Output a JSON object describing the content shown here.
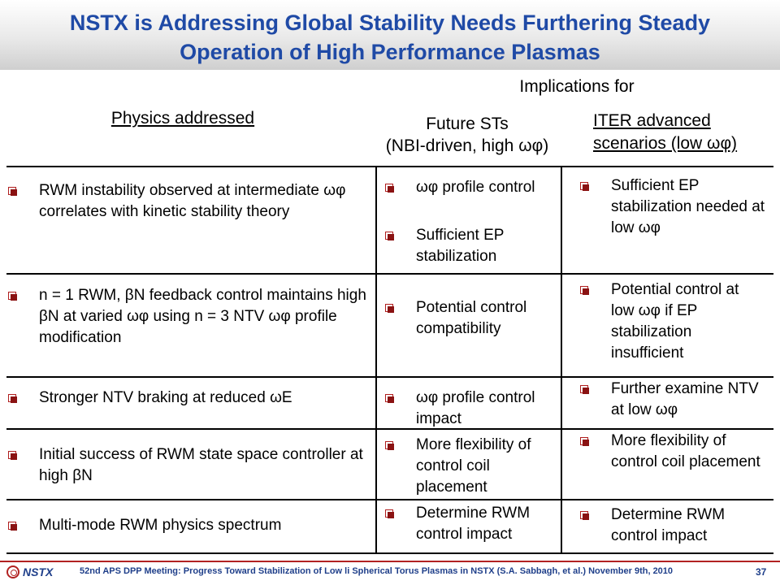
{
  "slide": {
    "title_line1": "NSTX is Addressing Global Stability Needs Furthering Steady",
    "title_line2": "Operation of High Performance Plasmas"
  },
  "headers": {
    "implications": "Implications for",
    "physics": "Physics addressed",
    "future_line1": "Future STs",
    "future_line2": "(NBI-driven, high ωφ)",
    "iter_line1": "ITER advanced",
    "iter_line2": "scenarios (low ωφ)"
  },
  "physics": [
    "RWM instability observed at intermediate ωφ correlates with kinetic stability theory",
    "n = 1 RWM, βN feedback control maintains high βN at varied ωφ using n = 3 NTV ωφ profile modification",
    "Stronger NTV braking at reduced ωE",
    "Initial success of RWM state space controller at high βN",
    "Multi-mode RWM physics spectrum"
  ],
  "future": [
    "ωφ profile control",
    "Sufficient EP stabilization",
    "Potential control compatibility",
    "ωφ profile control impact",
    "More flexibility of control coil placement",
    "Determine RWM control impact"
  ],
  "iter": [
    "Sufficient EP stabilization needed at low ωφ",
    "Potential control at low ωφ if EP stabilization insufficient",
    "Further examine NTV at low ωφ",
    "More flexibility of control coil placement",
    "Determine RWM control impact"
  ],
  "footer": {
    "logo": "NSTX",
    "meeting": "52nd APS DPP Meeting: Progress Toward Stabilization of Low li Spherical Torus Plasmas in NSTX (S.A. Sabbagh, et al.)    November 9th, 2010",
    "page": "37"
  },
  "colors": {
    "title": "#1f4aa6",
    "bullet": "#8a1212",
    "footer_rule": "#b22222"
  }
}
